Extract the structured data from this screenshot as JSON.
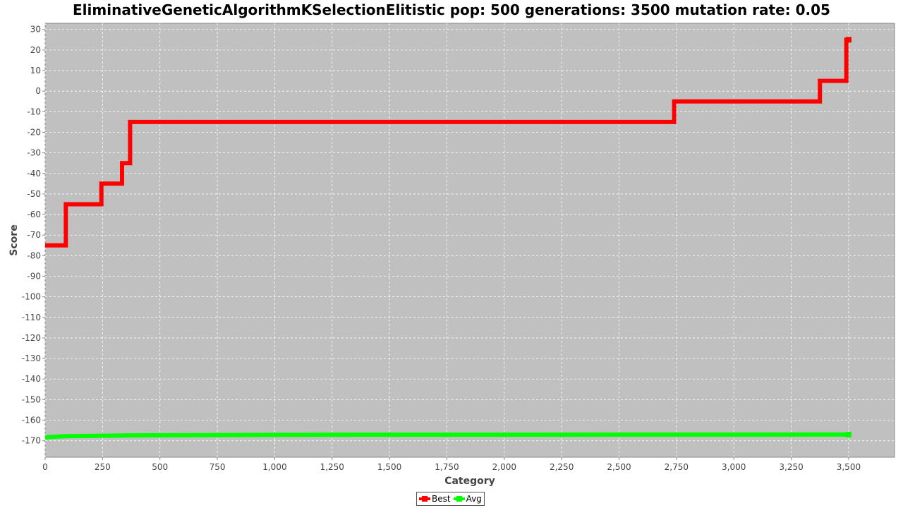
{
  "chart_data": {
    "type": "line",
    "title": "EliminativeGeneticAlgorithmKSelectionElitistic pop: 500 generations: 3500 mutation rate: 0.05",
    "xlabel": "Category",
    "ylabel": "Score",
    "xlim": [
      0,
      3700
    ],
    "ylim": [
      -178,
      33
    ],
    "x_ticks": [
      0,
      250,
      500,
      750,
      1000,
      1250,
      1500,
      1750,
      2000,
      2250,
      2500,
      2750,
      3000,
      3250,
      3500
    ],
    "x_tick_labels": [
      "0",
      "250",
      "500",
      "750",
      "1,000",
      "1,250",
      "1,500",
      "1,750",
      "2,000",
      "2,250",
      "2,500",
      "2,750",
      "3,000",
      "3,250",
      "3,500"
    ],
    "y_ticks": [
      30,
      20,
      10,
      0,
      -10,
      -20,
      -30,
      -40,
      -50,
      -60,
      -70,
      -80,
      -90,
      -100,
      -110,
      -120,
      -130,
      -140,
      -150,
      -160,
      -170
    ],
    "y_tick_labels": [
      "30",
      "20",
      "10",
      "0",
      "-10",
      "-20",
      "-30",
      "-40",
      "-50",
      "-60",
      "-70",
      "-80",
      "-90",
      "-100",
      "-110",
      "-120",
      "-130",
      "-140",
      "-150",
      "-160",
      "-170"
    ],
    "grid": true,
    "legend": "bottom-center",
    "series": [
      {
        "name": "Best",
        "color": "#ff0000",
        "points": [
          [
            0,
            -75
          ],
          [
            90,
            -75
          ],
          [
            90,
            -55
          ],
          [
            245,
            -55
          ],
          [
            245,
            -45
          ],
          [
            335,
            -45
          ],
          [
            335,
            -35
          ],
          [
            370,
            -35
          ],
          [
            370,
            -15
          ],
          [
            2740,
            -15
          ],
          [
            2740,
            -5
          ],
          [
            3375,
            -5
          ],
          [
            3375,
            5
          ],
          [
            3490,
            5
          ],
          [
            3490,
            25
          ],
          [
            3500,
            25
          ]
        ]
      },
      {
        "name": "Avg",
        "color": "#00ff00",
        "points": [
          [
            0,
            -168.5
          ],
          [
            15,
            -168.2
          ],
          [
            90,
            -167.8
          ],
          [
            370,
            -167.4
          ],
          [
            1170,
            -167.1
          ],
          [
            3500,
            -167
          ]
        ]
      }
    ]
  },
  "colors": {
    "plot_background": "#c0c0c0",
    "grid": "#ffffff",
    "axis_text": "#444444"
  }
}
